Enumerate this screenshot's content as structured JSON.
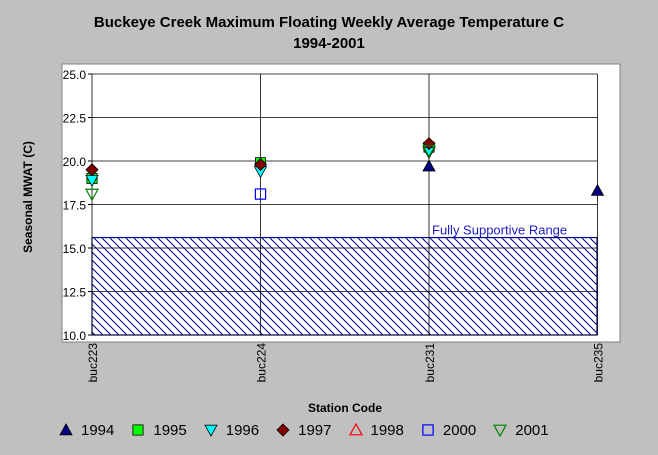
{
  "chart_data": {
    "type": "scatter",
    "title": "Buckeye Creek Maximum Floating Weekly Average Temperature C",
    "subtitle": "1994-2001",
    "xlabel": "Station Code",
    "ylabel": "Seasonal MWAT  (C)",
    "categories": [
      "buc223",
      "buc224",
      "buc231",
      "buc235"
    ],
    "ylim": [
      10.0,
      25.0
    ],
    "yticks": [
      "10.0",
      "12.5",
      "15.0",
      "17.5",
      "20.0",
      "22.5",
      "25.0"
    ],
    "grid": true,
    "legend_position": "bottom",
    "band": {
      "label": "Fully Supportive Range",
      "from": 10.0,
      "to": 15.6,
      "color": "#00008b"
    },
    "series": [
      {
        "name": "1994",
        "marker": "triangle-up-filled",
        "color": "#00007f",
        "values": [
          null,
          null,
          19.7,
          18.3
        ]
      },
      {
        "name": "1995",
        "marker": "square-filled",
        "color": "#00ff00",
        "values": [
          19.0,
          19.9,
          20.8,
          null
        ]
      },
      {
        "name": "1996",
        "marker": "triangle-down-filled",
        "color": "#00ffff",
        "values": [
          18.9,
          19.4,
          20.5,
          null
        ]
      },
      {
        "name": "1997",
        "marker": "diamond-filled",
        "color": "#800000",
        "values": [
          19.5,
          19.8,
          21.0,
          null
        ]
      },
      {
        "name": "1998",
        "marker": "triangle-up-open",
        "color": "#ff0000",
        "values": [
          null,
          null,
          null,
          null
        ]
      },
      {
        "name": "2000",
        "marker": "square-open",
        "color": "#0000ff",
        "values": [
          null,
          18.1,
          null,
          null
        ]
      },
      {
        "name": "2001",
        "marker": "triangle-down-open",
        "color": "#008000",
        "values": [
          18.1,
          null,
          20.6,
          null
        ]
      }
    ]
  }
}
